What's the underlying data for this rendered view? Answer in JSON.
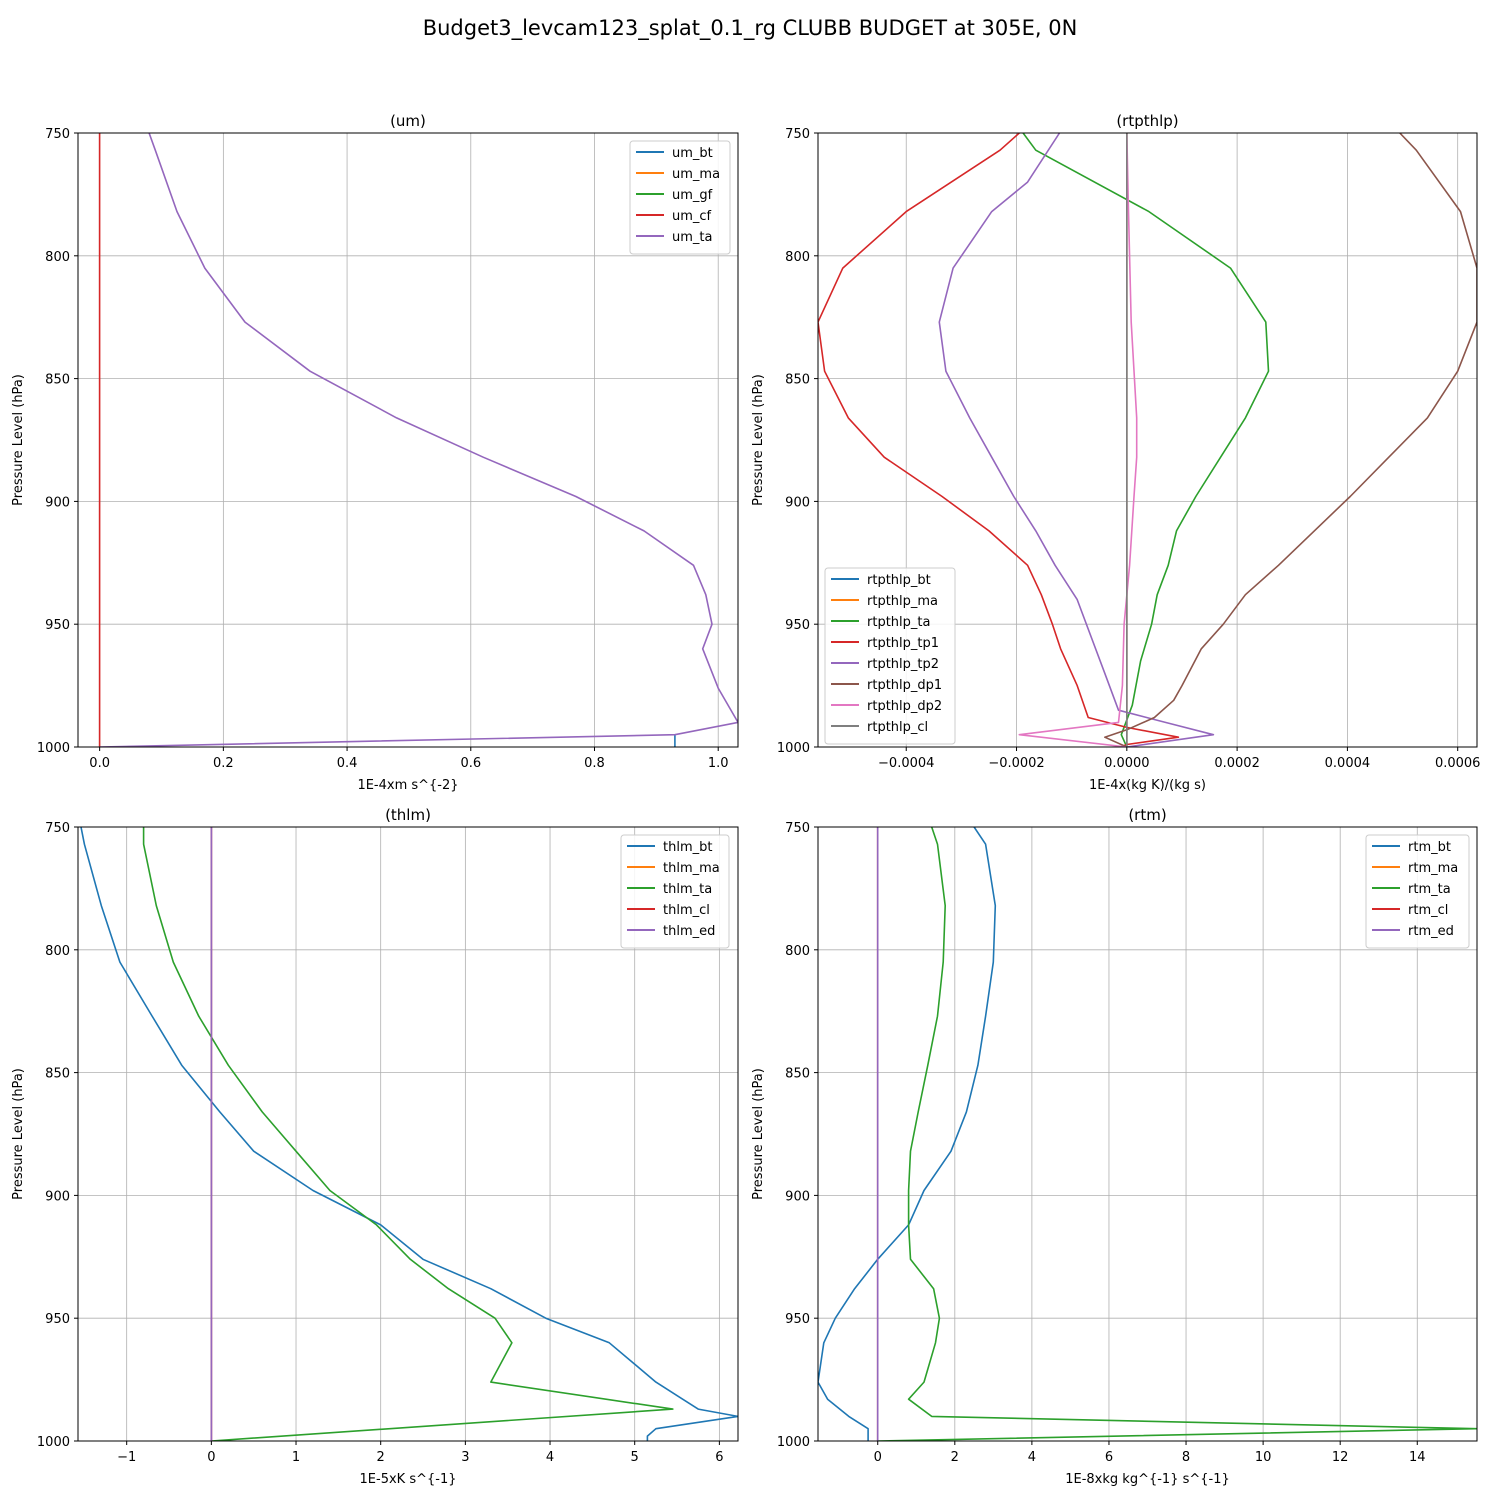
{
  "figure": {
    "title": "Budget3_levcam123_splat_0.1_rg CLUBB BUDGET at 305E, 0N"
  },
  "chart_data": [
    {
      "type": "line",
      "title": "(um)",
      "xlabel": "1E-4xm s^{-2}",
      "ylabel": "Pressure Level (hPa)",
      "xlim": [
        -0.035,
        1.032
      ],
      "ylim": [
        1000,
        750
      ],
      "xticks": [
        0.0,
        0.2,
        0.4,
        0.6,
        0.8,
        1.0
      ],
      "xtick_labels": [
        "0.0",
        "0.2",
        "0.4",
        "0.6",
        "0.8",
        "1.0"
      ],
      "yticks": [
        750,
        800,
        850,
        900,
        950,
        1000
      ],
      "ytick_labels": [
        "750",
        "800",
        "850",
        "900",
        "950",
        "1000"
      ],
      "grid": true,
      "legend": "top-right",
      "series": [
        {
          "name": "um_bt",
          "color": "#1f77b4",
          "points": [
            [
              0.93,
              1000
            ],
            [
              0.93,
              995
            ]
          ]
        },
        {
          "name": "um_ma",
          "color": "#ff7f0e",
          "points": []
        },
        {
          "name": "um_gf",
          "color": "#2ca02c",
          "points": []
        },
        {
          "name": "um_cf",
          "color": "#d62728",
          "points": [
            [
              0.0,
              750
            ],
            [
              0.0,
              1000
            ]
          ]
        },
        {
          "name": "um_ta",
          "color": "#9467bd",
          "points": [
            [
              0.08,
              750
            ],
            [
              0.09,
              757
            ],
            [
              0.125,
              782
            ],
            [
              0.17,
              805
            ],
            [
              0.235,
              827
            ],
            [
              0.34,
              847
            ],
            [
              0.48,
              866
            ],
            [
              0.62,
              882
            ],
            [
              0.77,
              898
            ],
            [
              0.88,
              912
            ],
            [
              0.96,
              926
            ],
            [
              0.98,
              938
            ],
            [
              0.99,
              950
            ],
            [
              0.975,
              960
            ],
            [
              1.0,
              976
            ],
            [
              1.032,
              990
            ],
            [
              0.93,
              995
            ],
            [
              0.0,
              1000
            ]
          ]
        }
      ]
    },
    {
      "type": "line",
      "title": "(rtpthlp)",
      "xlabel": "1E-4x(kg K)/(kg s)",
      "ylabel": "Pressure Level (hPa)",
      "xlim": [
        -0.00056,
        0.000635
      ],
      "ylim": [
        1000,
        750
      ],
      "xticks": [
        -0.0004,
        -0.0002,
        0.0,
        0.0002,
        0.0004,
        0.0006
      ],
      "xtick_labels": [
        "−0.0004",
        "−0.0002",
        "0.0000",
        "0.0002",
        "0.0004",
        "0.0006"
      ],
      "yticks": [
        750,
        800,
        850,
        900,
        950,
        1000
      ],
      "ytick_labels": [
        "750",
        "800",
        "850",
        "900",
        "950",
        "1000"
      ],
      "grid": true,
      "legend": "bottom-left",
      "series": [
        {
          "name": "rtpthlp_bt",
          "color": "#1f77b4",
          "points": [
            [
              0.0,
              750
            ],
            [
              0.0,
              1000
            ]
          ]
        },
        {
          "name": "rtpthlp_ma",
          "color": "#ff7f0e",
          "points": [
            [
              0.0,
              750
            ],
            [
              0.0,
              1000
            ]
          ]
        },
        {
          "name": "rtpthlp_ta",
          "color": "#2ca02c",
          "points": [
            [
              -0.000188,
              750
            ],
            [
              -0.000165,
              757
            ],
            [
              4e-05,
              782
            ],
            [
              0.000188,
              805
            ],
            [
              0.000252,
              827
            ],
            [
              0.000257,
              847
            ],
            [
              0.000215,
              866
            ],
            [
              0.00017,
              882
            ],
            [
              0.000125,
              898
            ],
            [
              9e-05,
              912
            ],
            [
              7.5e-05,
              926
            ],
            [
              5.5e-05,
              938
            ],
            [
              4.5e-05,
              950
            ],
            [
              2.5e-05,
              965
            ],
            [
              1e-05,
              983
            ],
            [
              -1e-05,
              995
            ],
            [
              0.0,
              1000
            ]
          ]
        },
        {
          "name": "rtpthlp_tp1",
          "color": "#d62728",
          "points": [
            [
              -0.000195,
              750
            ],
            [
              -0.00023,
              757
            ],
            [
              -0.0004,
              782
            ],
            [
              -0.000515,
              805
            ],
            [
              -0.00056,
              827
            ],
            [
              -0.000548,
              847
            ],
            [
              -0.000505,
              866
            ],
            [
              -0.00044,
              882
            ],
            [
              -0.000335,
              898
            ],
            [
              -0.00025,
              912
            ],
            [
              -0.00018,
              926
            ],
            [
              -0.000155,
              938
            ],
            [
              -0.000135,
              950
            ],
            [
              -0.00012,
              960
            ],
            [
              -9e-05,
              975
            ],
            [
              -7e-05,
              988
            ],
            [
              0.0,
              992
            ],
            [
              9.36e-05,
              996
            ],
            [
              0.0,
              999
            ],
            [
              -1e-05,
              1000
            ]
          ]
        },
        {
          "name": "rtpthlp_tp2",
          "color": "#9467bd",
          "points": [
            [
              -0.000122,
              750
            ],
            [
              -0.00018,
              770
            ],
            [
              -0.000245,
              782
            ],
            [
              -0.000315,
              805
            ],
            [
              -0.00034,
              827
            ],
            [
              -0.000328,
              847
            ],
            [
              -0.000285,
              866
            ],
            [
              -0.000245,
              882
            ],
            [
              -0.000205,
              898
            ],
            [
              -0.000165,
              912
            ],
            [
              -0.00013,
              926
            ],
            [
              -9e-05,
              940
            ],
            [
              -6.5e-05,
              955
            ],
            [
              -4e-05,
              970
            ],
            [
              -1.5e-05,
              985
            ],
            [
              7e-05,
              990
            ],
            [
              0.000157,
              995
            ],
            [
              0.0,
              1000
            ]
          ]
        },
        {
          "name": "rtpthlp_dp1",
          "color": "#8c564b",
          "points": [
            [
              0.000495,
              750
            ],
            [
              0.000525,
              757
            ],
            [
              0.000605,
              782
            ],
            [
              0.000635,
              805
            ],
            [
              0.000635,
              827
            ],
            [
              0.0006,
              847
            ],
            [
              0.000545,
              866
            ],
            [
              0.000475,
              882
            ],
            [
              0.000405,
              898
            ],
            [
              0.00034,
              912
            ],
            [
              0.000275,
              926
            ],
            [
              0.000215,
              938
            ],
            [
              0.000175,
              950
            ],
            [
              0.000135,
              960
            ],
            [
              0.0001,
              975
            ],
            [
              8.5e-05,
              981
            ],
            [
              5e-05,
              988
            ],
            [
              0.0,
              993
            ],
            [
              -4e-05,
              996
            ],
            [
              0.0,
              1000
            ]
          ]
        },
        {
          "name": "rtpthlp_dp2",
          "color": "#e377c2",
          "points": [
            [
              0.0,
              750
            ],
            [
              3e-06,
              782
            ],
            [
              8e-06,
              827
            ],
            [
              1.8e-05,
              866
            ],
            [
              1.8e-05,
              882
            ],
            [
              1.3e-05,
              898
            ],
            [
              5e-06,
              926
            ],
            [
              -5e-06,
              950
            ],
            [
              -8e-06,
              975
            ],
            [
              -1.5e-05,
              990
            ],
            [
              -0.000195,
              995
            ],
            [
              0.0,
              1000
            ]
          ]
        },
        {
          "name": "rtpthlp_cl",
          "color": "#7f7f7f",
          "points": [
            [
              0.0,
              750
            ],
            [
              0.0,
              1000
            ]
          ]
        }
      ]
    },
    {
      "type": "line",
      "title": "(thlm)",
      "xlabel": "1E-5xK s^{-1}",
      "ylabel": "Pressure Level (hPa)",
      "xlim": [
        -1.575,
        6.22
      ],
      "ylim": [
        1000,
        750
      ],
      "xticks": [
        -1,
        0,
        1,
        2,
        3,
        4,
        5,
        6
      ],
      "xtick_labels": [
        "−1",
        "0",
        "1",
        "2",
        "3",
        "4",
        "5",
        "6"
      ],
      "yticks": [
        750,
        800,
        850,
        900,
        950,
        1000
      ],
      "ytick_labels": [
        "750",
        "800",
        "850",
        "900",
        "950",
        "1000"
      ],
      "grid": true,
      "legend": "top-right",
      "series": [
        {
          "name": "thlm_bt",
          "color": "#1f77b4",
          "points": [
            [
              -1.54,
              750
            ],
            [
              -1.5,
              757
            ],
            [
              -1.3,
              782
            ],
            [
              -1.08,
              805
            ],
            [
              -0.7,
              827
            ],
            [
              -0.35,
              847
            ],
            [
              0.1,
              866
            ],
            [
              0.5,
              882
            ],
            [
              1.2,
              898
            ],
            [
              2.0,
              912
            ],
            [
              2.5,
              926
            ],
            [
              3.3,
              938
            ],
            [
              3.95,
              950
            ],
            [
              4.7,
              960
            ],
            [
              5.25,
              976
            ],
            [
              5.75,
              987
            ],
            [
              6.22,
              990
            ],
            [
              5.25,
              995
            ],
            [
              5.15,
              998
            ],
            [
              5.15,
              1000
            ]
          ]
        },
        {
          "name": "thlm_ma",
          "color": "#ff7f0e",
          "points": []
        },
        {
          "name": "thlm_ta",
          "color": "#2ca02c",
          "points": [
            [
              -0.8,
              750
            ],
            [
              -0.8,
              757
            ],
            [
              -0.65,
              782
            ],
            [
              -0.45,
              805
            ],
            [
              -0.15,
              827
            ],
            [
              0.2,
              847
            ],
            [
              0.6,
              866
            ],
            [
              1.0,
              882
            ],
            [
              1.4,
              898
            ],
            [
              1.95,
              912
            ],
            [
              2.35,
              926
            ],
            [
              2.8,
              938
            ],
            [
              3.35,
              950
            ],
            [
              3.55,
              960
            ],
            [
              3.3,
              976
            ],
            [
              5.45,
              987
            ],
            [
              0.0,
              1000
            ]
          ]
        },
        {
          "name": "thlm_cl",
          "color": "#d62728",
          "points": [
            [
              0.0,
              750
            ],
            [
              0.0,
              1000
            ]
          ]
        },
        {
          "name": "thlm_ed",
          "color": "#9467bd",
          "points": [
            [
              0.0,
              750
            ],
            [
              0.0,
              1000
            ]
          ]
        }
      ]
    },
    {
      "type": "line",
      "title": "(rtm)",
      "xlabel": "1E-8xkg kg^{-1} s^{-1}",
      "ylabel": "Pressure Level (hPa)",
      "xlim": [
        -1.55,
        15.55
      ],
      "ylim": [
        1000,
        750
      ],
      "xticks": [
        0,
        2,
        4,
        6,
        8,
        10,
        12,
        14
      ],
      "xtick_labels": [
        "0",
        "2",
        "4",
        "6",
        "8",
        "10",
        "12",
        "14"
      ],
      "yticks": [
        750,
        800,
        850,
        900,
        950,
        1000
      ],
      "ytick_labels": [
        "750",
        "800",
        "850",
        "900",
        "950",
        "1000"
      ],
      "grid": true,
      "legend": "top-right",
      "series": [
        {
          "name": "rtm_bt",
          "color": "#1f77b4",
          "points": [
            [
              2.5,
              750
            ],
            [
              2.8,
              757
            ],
            [
              3.05,
              782
            ],
            [
              3.0,
              805
            ],
            [
              2.8,
              827
            ],
            [
              2.6,
              847
            ],
            [
              2.3,
              866
            ],
            [
              1.9,
              882
            ],
            [
              1.2,
              898
            ],
            [
              0.8,
              912
            ],
            [
              0.0,
              926
            ],
            [
              -0.6,
              938
            ],
            [
              -1.1,
              950
            ],
            [
              -1.4,
              960
            ],
            [
              -1.55,
              976
            ],
            [
              -1.3,
              983
            ],
            [
              -0.75,
              990
            ],
            [
              -0.25,
              995
            ],
            [
              -0.25,
              1000
            ]
          ]
        },
        {
          "name": "rtm_ma",
          "color": "#ff7f0e",
          "points": []
        },
        {
          "name": "rtm_ta",
          "color": "#2ca02c",
          "points": [
            [
              1.4,
              750
            ],
            [
              1.55,
              757
            ],
            [
              1.75,
              782
            ],
            [
              1.7,
              805
            ],
            [
              1.55,
              827
            ],
            [
              1.3,
              847
            ],
            [
              1.05,
              866
            ],
            [
              0.85,
              882
            ],
            [
              0.8,
              898
            ],
            [
              0.8,
              912
            ],
            [
              0.85,
              926
            ],
            [
              1.45,
              938
            ],
            [
              1.6,
              950
            ],
            [
              1.5,
              960
            ],
            [
              1.2,
              976
            ],
            [
              0.8,
              983
            ],
            [
              1.4,
              990
            ],
            [
              15.55,
              995
            ],
            [
              0.0,
              1000
            ]
          ]
        },
        {
          "name": "rtm_cl",
          "color": "#d62728",
          "points": [
            [
              0.0,
              750
            ],
            [
              0.0,
              1000
            ]
          ]
        },
        {
          "name": "rtm_ed",
          "color": "#9467bd",
          "points": [
            [
              0.0,
              750
            ],
            [
              0.0,
              1000
            ]
          ]
        }
      ]
    }
  ]
}
